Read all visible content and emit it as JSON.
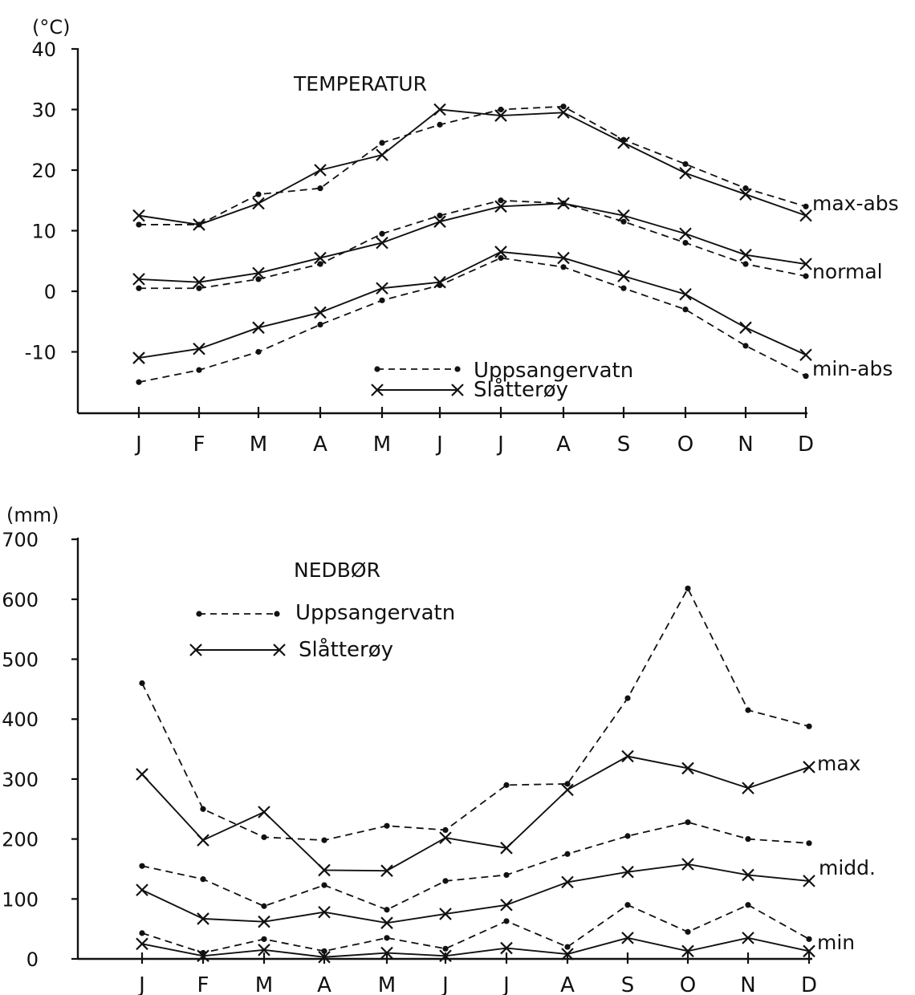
{
  "chart_data": [
    {
      "type": "line",
      "title": "TEMPERATUR",
      "unit_label": "(°C)",
      "ylim": [
        -20,
        40
      ],
      "y_ticks": [
        "40",
        "30",
        "20",
        "10",
        "0",
        "-10"
      ],
      "categories": [
        "J",
        "F",
        "M",
        "A",
        "M",
        "J",
        "J",
        "A",
        "S",
        "O",
        "N",
        "D"
      ],
      "legend": [
        {
          "name": "Uppsangervatn",
          "style": "dashed-dot"
        },
        {
          "name": "Slåtterøy",
          "style": "solid-x"
        }
      ],
      "group_labels": [
        "max-abs",
        "normal",
        "min-abs"
      ],
      "series": [
        {
          "name": "Uppsangervatn",
          "group": "max-abs",
          "values": [
            11,
            11,
            16,
            17,
            24.5,
            27.5,
            30,
            30.5,
            25,
            21,
            17,
            14
          ]
        },
        {
          "name": "Slåtterøy",
          "group": "max-abs",
          "values": [
            12.5,
            11,
            14.5,
            20,
            22.5,
            30,
            29,
            29.5,
            24.5,
            19.5,
            16,
            12.5
          ]
        },
        {
          "name": "Uppsangervatn",
          "group": "normal",
          "values": [
            0.5,
            0.5,
            2,
            4.5,
            9.5,
            12.5,
            15,
            14.5,
            11.5,
            8,
            4.5,
            2.5
          ]
        },
        {
          "name": "Slåtterøy",
          "group": "normal",
          "values": [
            2,
            1.5,
            3,
            5.5,
            8,
            11.5,
            14,
            14.5,
            12.5,
            9.5,
            6,
            4.5
          ]
        },
        {
          "name": "Uppsangervatn",
          "group": "min-abs",
          "values": [
            -15,
            -13,
            -10,
            -5.5,
            -1.5,
            1,
            5.5,
            4,
            0.5,
            -3,
            -9,
            -14
          ]
        },
        {
          "name": "Slåtterøy",
          "group": "min-abs",
          "values": [
            -11,
            -9.5,
            -6,
            -3.5,
            0.5,
            1.5,
            6.5,
            5.5,
            2.5,
            -0.5,
            -6,
            -10.5
          ]
        }
      ]
    },
    {
      "type": "line",
      "title": "NEDBØR",
      "unit_label": "(mm)",
      "ylim": [
        0,
        700
      ],
      "y_ticks": [
        "700",
        "600",
        "500",
        "400",
        "300",
        "200",
        "100",
        "0"
      ],
      "categories": [
        "J",
        "F",
        "M",
        "A",
        "M",
        "J",
        "J",
        "A",
        "S",
        "O",
        "N",
        "D"
      ],
      "legend": [
        {
          "name": "Uppsangervatn",
          "style": "dashed-dot"
        },
        {
          "name": "Slåtterøy",
          "style": "solid-x"
        }
      ],
      "group_labels": [
        "max",
        "midd.",
        "min"
      ],
      "series": [
        {
          "name": "Uppsangervatn",
          "group": "max",
          "values": [
            460,
            250,
            203,
            198,
            222,
            215,
            290,
            292,
            435,
            618,
            415,
            388
          ]
        },
        {
          "name": "Slåtterøy",
          "group": "max",
          "values": [
            308,
            198,
            245,
            148,
            147,
            202,
            185,
            282,
            338,
            318,
            285,
            320
          ]
        },
        {
          "name": "Uppsangervatn",
          "group": "midd.",
          "values": [
            155,
            133,
            88,
            123,
            82,
            130,
            140,
            175,
            205,
            228,
            200,
            193
          ]
        },
        {
          "name": "Slåtterøy",
          "group": "midd.",
          "values": [
            115,
            67,
            62,
            78,
            60,
            75,
            90,
            128,
            145,
            158,
            140,
            130
          ]
        },
        {
          "name": "Uppsangervatn",
          "group": "min",
          "values": [
            43,
            10,
            33,
            13,
            35,
            17,
            63,
            20,
            90,
            45,
            90,
            33
          ]
        },
        {
          "name": "Slåtterøy",
          "group": "min",
          "values": [
            25,
            5,
            15,
            3,
            10,
            5,
            18,
            8,
            35,
            13,
            35,
            13
          ]
        }
      ]
    }
  ]
}
